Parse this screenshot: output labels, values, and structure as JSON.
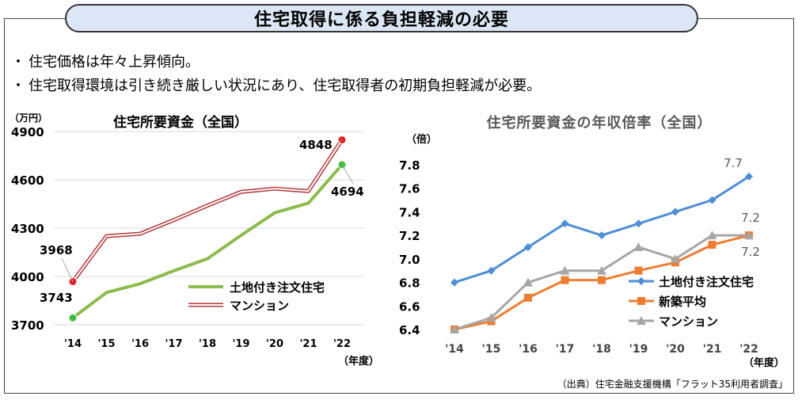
{
  "title": "住宅取得に係る負担軽減の必要",
  "bullets": [
    "住宅価格は年々上昇傾向。",
    "住宅取得環境は引き続き厳しい状況にあり、住宅取得者の初期負担軽減が必要。"
  ],
  "bullet_symbol": "・",
  "source": "（出典）住宅金融支援機構「フラット35利用者調査」",
  "colors": {
    "pill_bg": "#dbe7f6",
    "land": "#8dbb4d",
    "mansion_left": "#b03a3a",
    "blue": "#4f8ed6",
    "orange": "#ed7d31",
    "gray": "#a6a6a6",
    "red_dot": "#e02020",
    "green_dot": "#3fbf3f"
  },
  "chart_data": [
    {
      "type": "line",
      "title": "住宅所要資金（全国）",
      "unit_label": "（万円）",
      "xunit_label": "（年度）",
      "categories": [
        "'14",
        "'15",
        "'16",
        "'17",
        "'18",
        "'19",
        "'20",
        "'21",
        "'22"
      ],
      "ylim": [
        3700,
        4900
      ],
      "yticks": [
        "3700",
        "4000",
        "4300",
        "4600",
        "4900"
      ],
      "series": [
        {
          "name": "土地付き注文住宅",
          "values": [
            3743,
            3900,
            3955,
            4035,
            4110,
            4255,
            4395,
            4455,
            4694
          ]
        },
        {
          "name": "マンション",
          "values": [
            3968,
            4250,
            4265,
            4350,
            4440,
            4525,
            4545,
            4530,
            4848
          ]
        }
      ],
      "labels": {
        "land_start": "3743",
        "land_end": "4694",
        "mansion_start": "3968",
        "mansion_end": "4848"
      }
    },
    {
      "type": "line",
      "title": "住宅所要資金の年収倍率（全国）",
      "unit_label": "（倍）",
      "xunit_label": "（年度）",
      "categories": [
        "'14",
        "'15",
        "'16",
        "'17",
        "'18",
        "'19",
        "'20",
        "'21",
        "'22"
      ],
      "ylim": [
        6.4,
        7.8
      ],
      "yticks": [
        "6.4",
        "6.6",
        "6.8",
        "7.0",
        "7.2",
        "7.4",
        "7.6",
        "7.8"
      ],
      "series": [
        {
          "name": "土地付き注文住宅",
          "values": [
            6.8,
            6.9,
            7.1,
            7.3,
            7.2,
            7.3,
            7.4,
            7.5,
            7.7
          ]
        },
        {
          "name": "新築平均",
          "values": [
            6.4,
            6.47,
            6.67,
            6.82,
            6.82,
            6.9,
            6.97,
            7.12,
            7.2
          ]
        },
        {
          "name": "マンション",
          "values": [
            6.4,
            6.5,
            6.8,
            6.9,
            6.9,
            7.1,
            7.0,
            7.2,
            7.2
          ]
        }
      ],
      "labels": {
        "land_end": "7.7",
        "newavg_end": "7.2",
        "mansion_end": "7.2"
      }
    }
  ]
}
